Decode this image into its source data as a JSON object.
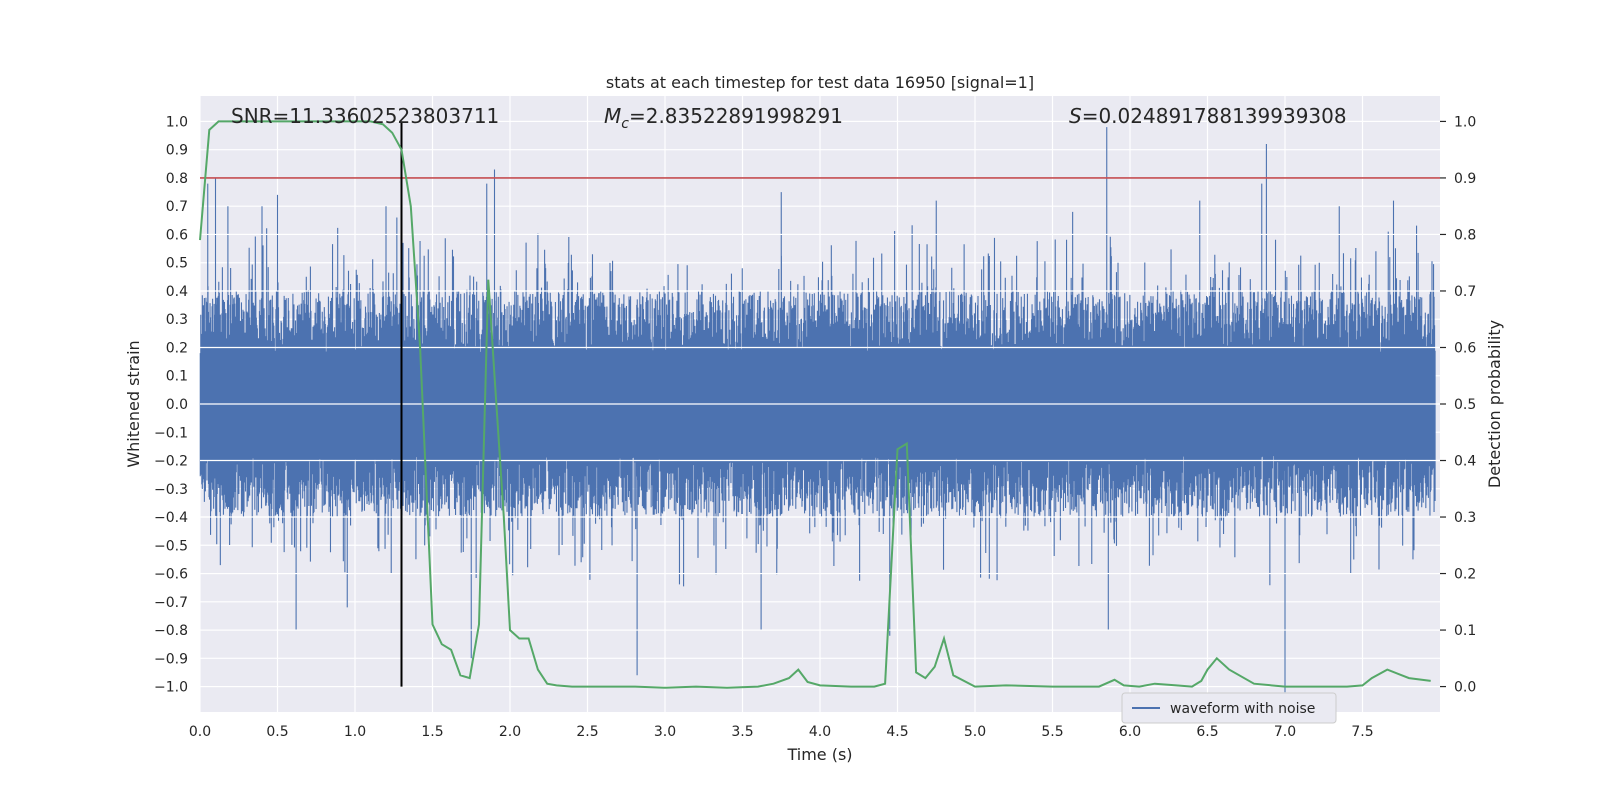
{
  "chart_data": {
    "type": "line",
    "title": "stats at each timestep for test data 16950 [signal=1]",
    "xlabel": "Time (s)",
    "ylabel_left": "Whitened strain",
    "ylabel_right": "Detection probability",
    "xlim": [
      0.0,
      8.0
    ],
    "ylim_left": [
      -1.09,
      1.09
    ],
    "ylim_right": [
      -0.045,
      1.045
    ],
    "x_ticks": [
      0.0,
      0.5,
      1.0,
      1.5,
      2.0,
      2.5,
      3.0,
      3.5,
      4.0,
      4.5,
      5.0,
      5.5,
      6.0,
      6.5,
      7.0,
      7.5
    ],
    "x_tick_labels": [
      "0.0",
      "0.5",
      "1.0",
      "1.5",
      "2.0",
      "2.5",
      "3.0",
      "3.5",
      "4.0",
      "4.5",
      "5.0",
      "5.5",
      "6.0",
      "6.5",
      "7.0",
      "7.5"
    ],
    "y_left_ticks": [
      1.0,
      0.9,
      0.8,
      0.7,
      0.6,
      0.5,
      0.4,
      0.3,
      0.2,
      0.1,
      0.0,
      -0.1,
      -0.2,
      -0.3,
      -0.4,
      -0.5,
      -0.6,
      -0.7,
      -0.8,
      -0.9,
      -1.0
    ],
    "y_left_tick_labels": [
      "1.0",
      "0.9",
      "0.8",
      "0.7",
      "0.6",
      "0.5",
      "0.4",
      "0.3",
      "0.2",
      "0.1",
      "0.0",
      "−0.1",
      "−0.2",
      "−0.3",
      "−0.4",
      "−0.5",
      "−0.6",
      "−0.7",
      "−0.8",
      "−0.9",
      "−1.0"
    ],
    "y_right_ticks": [
      1.0,
      0.9,
      0.8,
      0.7,
      0.6,
      0.5,
      0.4,
      0.3,
      0.2,
      0.1,
      0.0
    ],
    "y_right_tick_labels": [
      "1.0",
      "0.9",
      "0.8",
      "0.7",
      "0.6",
      "0.5",
      "0.4",
      "0.3",
      "0.2",
      "0.1",
      "0.0"
    ],
    "grid": true,
    "legend": {
      "position": "lower-right",
      "entries": [
        "waveform with noise"
      ]
    },
    "annotations": {
      "snr": "SNR=11.33602523803711",
      "mc_symbol": "M",
      "mc_sub": "c",
      "mc_value": "=2.83522891998291",
      "s_symbol": "S",
      "s_value": "=0.024891788139939308"
    },
    "threshold_probability": 0.9,
    "vertical_marker_time": 1.3,
    "waveform": {
      "name": "waveform with noise",
      "color": "#4c72b0",
      "typical_amplitude": 0.4,
      "spikes": [
        {
          "t": 0.05,
          "v": 0.78
        },
        {
          "t": 0.1,
          "v": 0.8
        },
        {
          "t": 0.18,
          "v": 0.7
        },
        {
          "t": 0.4,
          "v": 0.7
        },
        {
          "t": 0.5,
          "v": 0.74
        },
        {
          "t": 0.62,
          "v": -0.8
        },
        {
          "t": 0.95,
          "v": -0.72
        },
        {
          "t": 1.2,
          "v": 0.7
        },
        {
          "t": 1.27,
          "v": 0.66
        },
        {
          "t": 1.31,
          "v": 0.57
        },
        {
          "t": 1.75,
          "v": -0.9
        },
        {
          "t": 1.85,
          "v": 0.78
        },
        {
          "t": 1.9,
          "v": 0.83
        },
        {
          "t": 2.82,
          "v": -0.96
        },
        {
          "t": 3.62,
          "v": -0.8
        },
        {
          "t": 3.75,
          "v": 0.75
        },
        {
          "t": 4.45,
          "v": -0.82
        },
        {
          "t": 4.75,
          "v": 0.72
        },
        {
          "t": 5.63,
          "v": 0.68
        },
        {
          "t": 5.85,
          "v": 0.98
        },
        {
          "t": 5.86,
          "v": -0.8
        },
        {
          "t": 6.45,
          "v": 0.72
        },
        {
          "t": 6.85,
          "v": 0.78
        },
        {
          "t": 6.88,
          "v": 0.92
        },
        {
          "t": 7.0,
          "v": -1.02
        },
        {
          "t": 7.35,
          "v": 0.7
        },
        {
          "t": 7.7,
          "v": 0.72
        }
      ]
    },
    "detection_probability": {
      "color": "#55a868",
      "x": [
        0.0,
        0.06,
        0.12,
        0.18,
        0.3,
        0.5,
        0.7,
        0.9,
        1.1,
        1.18,
        1.24,
        1.3,
        1.36,
        1.42,
        1.5,
        1.56,
        1.62,
        1.68,
        1.74,
        1.8,
        1.86,
        1.9,
        1.96,
        2.0,
        2.06,
        2.12,
        2.18,
        2.24,
        2.3,
        2.4,
        2.6,
        2.8,
        3.0,
        3.2,
        3.4,
        3.6,
        3.7,
        3.8,
        3.86,
        3.92,
        4.0,
        4.2,
        4.35,
        4.42,
        4.5,
        4.56,
        4.62,
        4.68,
        4.74,
        4.8,
        4.86,
        5.0,
        5.2,
        5.5,
        5.8,
        5.9,
        5.96,
        6.06,
        6.16,
        6.3,
        6.4,
        6.46,
        6.5,
        6.56,
        6.64,
        6.8,
        7.0,
        7.2,
        7.4,
        7.5,
        7.56,
        7.66,
        7.8,
        7.94
      ],
      "y": [
        0.79,
        0.985,
        1.0,
        1.0,
        1.0,
        1.0,
        1.0,
        1.0,
        1.0,
        0.995,
        0.98,
        0.95,
        0.85,
        0.6,
        0.11,
        0.075,
        0.065,
        0.02,
        0.015,
        0.11,
        0.72,
        0.55,
        0.3,
        0.1,
        0.085,
        0.085,
        0.03,
        0.005,
        0.002,
        0.0,
        0.0,
        0.0,
        -0.002,
        0.0,
        -0.002,
        0.0,
        0.005,
        0.015,
        0.03,
        0.008,
        0.002,
        0.0,
        0.0,
        0.005,
        0.42,
        0.43,
        0.025,
        0.015,
        0.035,
        0.085,
        0.02,
        0.0,
        0.002,
        0.0,
        0.0,
        0.012,
        0.002,
        0.0,
        0.005,
        0.002,
        0.0,
        0.01,
        0.03,
        0.05,
        0.03,
        0.005,
        0.0,
        0.0,
        0.0,
        0.002,
        0.015,
        0.03,
        0.015,
        0.01
      ]
    }
  }
}
